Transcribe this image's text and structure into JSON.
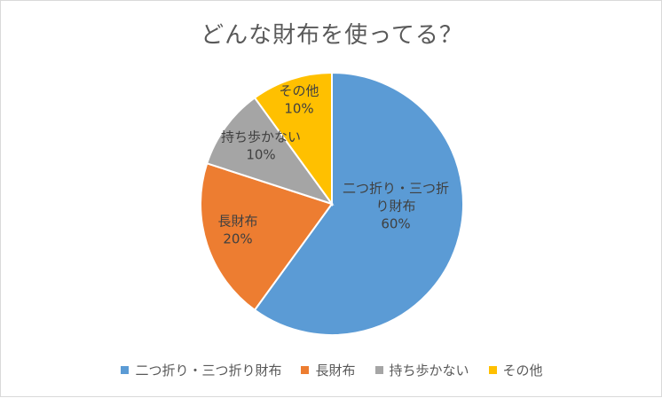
{
  "chart_data": {
    "type": "pie",
    "title": "どんな財布を使ってる？",
    "categories": [
      "二つ折り・三つ折り財布",
      "長財布",
      "持ち歩かない",
      "その他"
    ],
    "values": [
      60,
      20,
      10,
      10
    ],
    "value_labels": [
      "60%",
      "20%",
      "10%",
      "10%"
    ],
    "slice_label_lines": [
      [
        "二つ折り・三つ折",
        "り財布"
      ],
      [
        "長財布"
      ],
      [
        "持ち歩かない"
      ],
      [
        "その他"
      ]
    ],
    "colors": [
      "#5b9bd5",
      "#ed7d31",
      "#a5a5a5",
      "#ffc000"
    ],
    "legend_position": "bottom",
    "start_angle": "12 o'clock",
    "direction": "clockwise"
  },
  "legend": {
    "items": [
      {
        "label": "二つ折り・三つ折り財布",
        "color": "#5b9bd5"
      },
      {
        "label": "長財布",
        "color": "#ed7d31"
      },
      {
        "label": "持ち歩かない",
        "color": "#a5a5a5"
      },
      {
        "label": "その他",
        "color": "#ffc000"
      }
    ]
  }
}
